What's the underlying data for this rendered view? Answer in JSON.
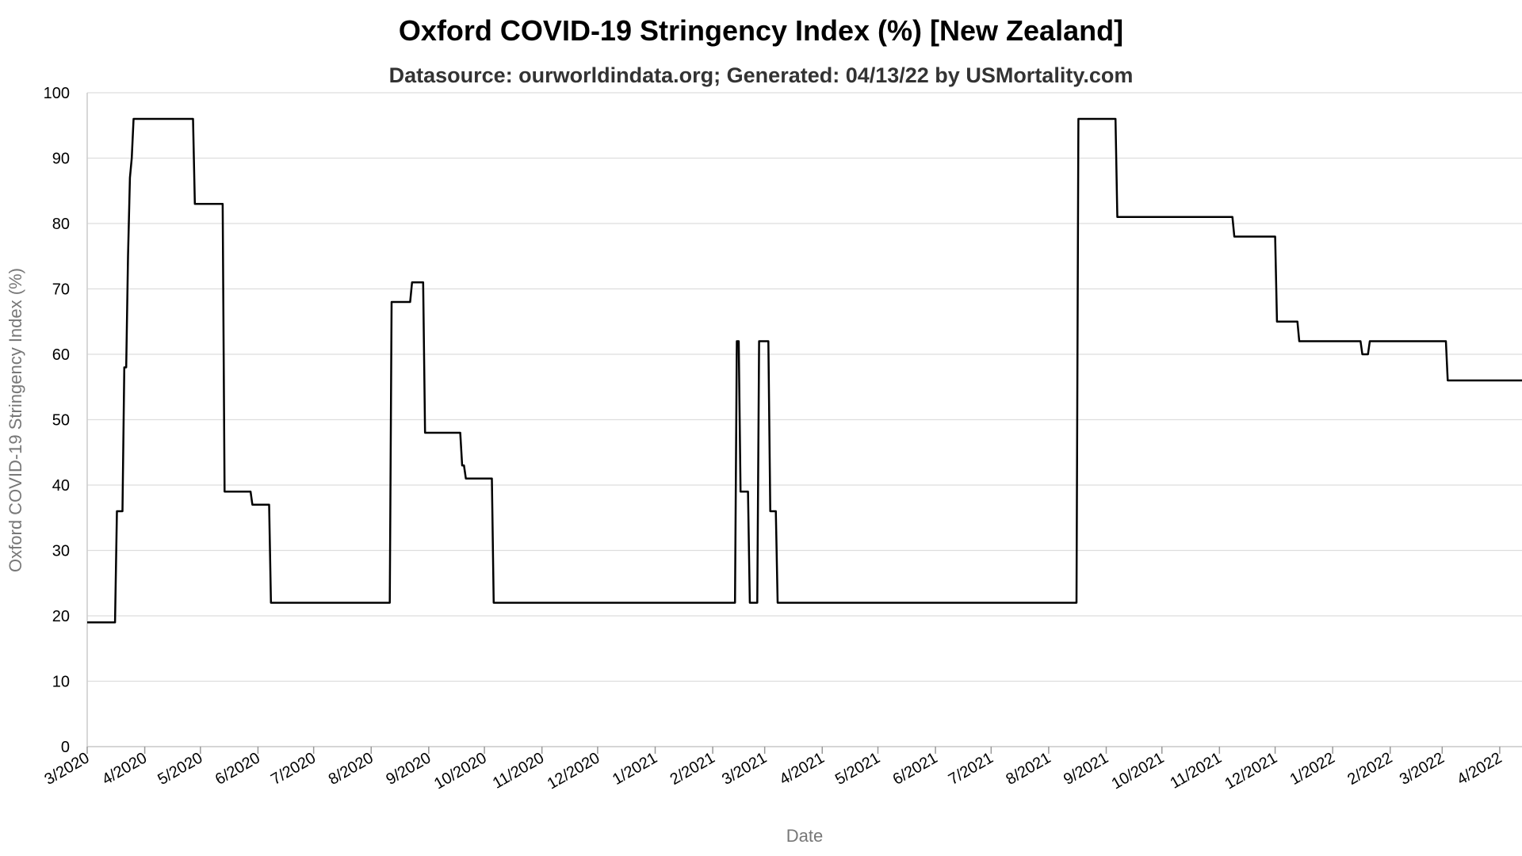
{
  "chart_data": {
    "type": "line",
    "title": "Oxford COVID-19 Stringency Index (%) [New Zealand]",
    "subtitle": "Datasource: ourworldindata.org; Generated: 04/13/22 by USMortality.com",
    "xlabel": "Date",
    "ylabel": "Oxford COVID-19 Stringency Index (%)",
    "ylim": [
      0,
      100
    ],
    "y_ticks": [
      0,
      10,
      20,
      30,
      40,
      50,
      60,
      70,
      80,
      90,
      100
    ],
    "x_ticks": [
      "3/2020",
      "4/2020",
      "5/2020",
      "6/2020",
      "7/2020",
      "8/2020",
      "9/2020",
      "10/2020",
      "11/2020",
      "12/2020",
      "1/2021",
      "2/2021",
      "3/2021",
      "4/2021",
      "5/2021",
      "6/2021",
      "7/2021",
      "8/2021",
      "9/2021",
      "10/2021",
      "11/2021",
      "12/2021",
      "1/2022",
      "2/2022",
      "3/2022",
      "4/2022"
    ],
    "xlim": [
      "2020-03-01",
      "2022-04-13"
    ],
    "grid": true,
    "line_color": "#000000",
    "series": [
      {
        "points": [
          [
            "2020-03-01",
            19
          ],
          [
            "2020-03-16",
            19
          ],
          [
            "2020-03-17",
            36
          ],
          [
            "2020-03-20",
            36
          ],
          [
            "2020-03-21",
            58
          ],
          [
            "2020-03-22",
            58
          ],
          [
            "2020-03-23",
            75
          ],
          [
            "2020-03-24",
            87
          ],
          [
            "2020-03-25",
            90
          ],
          [
            "2020-03-26",
            96
          ],
          [
            "2020-04-27",
            96
          ],
          [
            "2020-04-28",
            83
          ],
          [
            "2020-05-13",
            83
          ],
          [
            "2020-05-14",
            39
          ],
          [
            "2020-05-28",
            39
          ],
          [
            "2020-05-29",
            37
          ],
          [
            "2020-06-07",
            37
          ],
          [
            "2020-06-08",
            22
          ],
          [
            "2020-08-11",
            22
          ],
          [
            "2020-08-12",
            68
          ],
          [
            "2020-08-22",
            68
          ],
          [
            "2020-08-23",
            71
          ],
          [
            "2020-08-29",
            71
          ],
          [
            "2020-08-30",
            48
          ],
          [
            "2020-09-18",
            48
          ],
          [
            "2020-09-19",
            43
          ],
          [
            "2020-09-20",
            43
          ],
          [
            "2020-09-21",
            41
          ],
          [
            "2020-10-05",
            41
          ],
          [
            "2020-10-06",
            22
          ],
          [
            "2021-02-13",
            22
          ],
          [
            "2021-02-14",
            62
          ],
          [
            "2021-02-15",
            62
          ],
          [
            "2021-02-16",
            39
          ],
          [
            "2021-02-20",
            39
          ],
          [
            "2021-02-21",
            22
          ],
          [
            "2021-02-25",
            22
          ],
          [
            "2021-02-26",
            62
          ],
          [
            "2021-03-03",
            62
          ],
          [
            "2021-03-04",
            36
          ],
          [
            "2021-03-07",
            36
          ],
          [
            "2021-03-08",
            22
          ],
          [
            "2021-08-16",
            22
          ],
          [
            "2021-08-17",
            96
          ],
          [
            "2021-09-06",
            96
          ],
          [
            "2021-09-07",
            81
          ],
          [
            "2021-11-08",
            81
          ],
          [
            "2021-11-09",
            78
          ],
          [
            "2021-12-01",
            78
          ],
          [
            "2021-12-02",
            65
          ],
          [
            "2021-12-13",
            65
          ],
          [
            "2021-12-14",
            62
          ],
          [
            "2022-01-16",
            62
          ],
          [
            "2022-01-17",
            60
          ],
          [
            "2022-01-20",
            60
          ],
          [
            "2022-01-21",
            62
          ],
          [
            "2022-03-03",
            62
          ],
          [
            "2022-03-04",
            56
          ],
          [
            "2022-04-13",
            56
          ]
        ]
      }
    ]
  }
}
